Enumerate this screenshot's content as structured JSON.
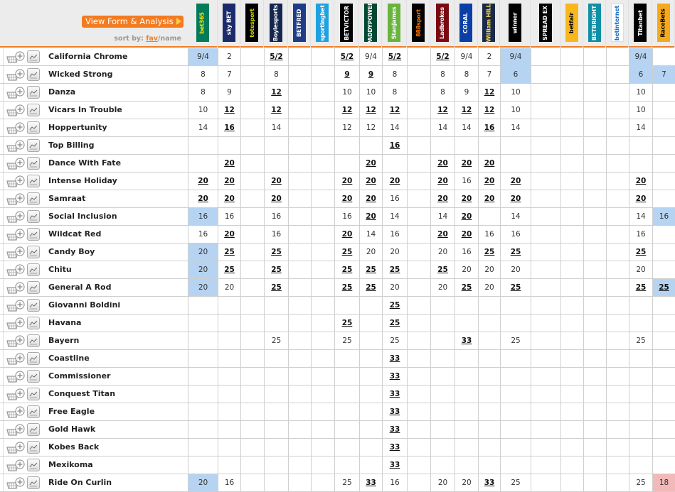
{
  "header": {
    "form_button": "View Form & Analysis",
    "sort_label": "sort by:",
    "sort_fav": "fav",
    "sort_sep": "/",
    "sort_name": "name"
  },
  "colors": {
    "accent": "#f47b20",
    "best_price_bg": "#b6d4f2",
    "drifting_bg": "#f2b9b9"
  },
  "bookmakers": [
    {
      "name": "bet365",
      "bg": "#027b5b",
      "fg": "#ffe500"
    },
    {
      "name": "sky BET",
      "bg": "#1b2a6b",
      "fg": "#ffffff"
    },
    {
      "name": "totesport",
      "bg": "#000000",
      "fg": "#c8d400"
    },
    {
      "name": "Boylesports",
      "bg": "#14264f",
      "fg": "#ffffff"
    },
    {
      "name": "BETFRED",
      "bg": "#1f3c88",
      "fg": "#ffffff"
    },
    {
      "name": "sportingbet",
      "bg": "#1ea1e0",
      "fg": "#ffffff"
    },
    {
      "name": "BETVICTOR",
      "bg": "#000000",
      "fg": "#ffffff"
    },
    {
      "name": "PADDYPOWER",
      "bg": "#004833",
      "fg": "#ffffff"
    },
    {
      "name": "StanJames",
      "bg": "#6ab43e",
      "fg": "#ffffff"
    },
    {
      "name": "888sport",
      "bg": "#000000",
      "fg": "#ff7a00"
    },
    {
      "name": "Ladbrokes",
      "bg": "#7a0a12",
      "fg": "#ffffff"
    },
    {
      "name": "CORAL",
      "bg": "#0b3fa6",
      "fg": "#ffffff"
    },
    {
      "name": "William HILL",
      "bg": "#1c2a4a",
      "fg": "#f7d84a"
    },
    {
      "name": "winner",
      "bg": "#000000",
      "fg": "#ffffff"
    },
    {
      "name": "SPREAD EX",
      "bg": "#000000",
      "fg": "#ffffff"
    },
    {
      "name": "betfair",
      "bg": "#f8b71c",
      "fg": "#000000"
    },
    {
      "name": "BETBRIGHT",
      "bg": "#0f8fa5",
      "fg": "#ffffff"
    },
    {
      "name": "betinternet",
      "bg": "#ffffff",
      "fg": "#1f6fc4"
    },
    {
      "name": "Titanbet",
      "bg": "#000000",
      "fg": "#ffffff"
    },
    {
      "name": "RaceBets",
      "bg": "#f5a91c",
      "fg": "#000000"
    }
  ],
  "runners": [
    {
      "name": "California Chrome",
      "odds": [
        "9/4",
        "2",
        "",
        "5/2",
        "",
        "",
        "5/2",
        "9/4",
        "5/2",
        "",
        "5/2",
        "9/4",
        "2",
        "9/4",
        "",
        "",
        "",
        "",
        "9/4",
        ""
      ],
      "best": [
        3,
        6,
        8,
        10
      ],
      "blue": [
        0,
        13,
        18
      ],
      "pink": []
    },
    {
      "name": "Wicked Strong",
      "odds": [
        "8",
        "7",
        "",
        "8",
        "",
        "",
        "9",
        "9",
        "8",
        "",
        "8",
        "8",
        "7",
        "6",
        "",
        "",
        "",
        "",
        "6",
        "7"
      ],
      "best": [
        6,
        7
      ],
      "blue": [
        13,
        18,
        19
      ],
      "pink": []
    },
    {
      "name": "Danza",
      "odds": [
        "8",
        "9",
        "",
        "12",
        "",
        "",
        "10",
        "10",
        "8",
        "",
        "8",
        "9",
        "12",
        "10",
        "",
        "",
        "",
        "",
        "10",
        ""
      ],
      "best": [
        3,
        12
      ],
      "blue": [],
      "pink": []
    },
    {
      "name": "Vicars In Trouble",
      "odds": [
        "10",
        "12",
        "",
        "12",
        "",
        "",
        "12",
        "12",
        "12",
        "",
        "12",
        "12",
        "12",
        "10",
        "",
        "",
        "",
        "",
        "10",
        ""
      ],
      "best": [
        1,
        3,
        6,
        7,
        8,
        10,
        11,
        12
      ],
      "blue": [],
      "pink": []
    },
    {
      "name": "Hoppertunity",
      "odds": [
        "14",
        "16",
        "",
        "14",
        "",
        "",
        "12",
        "12",
        "14",
        "",
        "14",
        "14",
        "16",
        "14",
        "",
        "",
        "",
        "",
        "14",
        ""
      ],
      "best": [
        1,
        12
      ],
      "blue": [],
      "pink": []
    },
    {
      "name": "Top Billing",
      "odds": [
        "",
        "",
        "",
        "",
        "",
        "",
        "",
        "",
        "16",
        "",
        "",
        "",
        "",
        "",
        "",
        "",
        "",
        "",
        "",
        ""
      ],
      "best": [
        8
      ],
      "blue": [],
      "pink": []
    },
    {
      "name": "Dance With Fate",
      "odds": [
        "",
        "20",
        "",
        "",
        "",
        "",
        "",
        "20",
        "",
        "",
        "20",
        "20",
        "20",
        "",
        "",
        "",
        "",
        "",
        "",
        ""
      ],
      "best": [
        1,
        7,
        10,
        11,
        12
      ],
      "blue": [],
      "pink": []
    },
    {
      "name": "Intense Holiday",
      "odds": [
        "20",
        "20",
        "",
        "20",
        "",
        "",
        "20",
        "20",
        "20",
        "",
        "20",
        "16",
        "20",
        "20",
        "",
        "",
        "",
        "",
        "20",
        ""
      ],
      "best": [
        0,
        1,
        3,
        6,
        7,
        8,
        10,
        12,
        13,
        18
      ],
      "blue": [],
      "pink": []
    },
    {
      "name": "Samraat",
      "odds": [
        "20",
        "20",
        "",
        "20",
        "",
        "",
        "20",
        "20",
        "16",
        "",
        "20",
        "20",
        "20",
        "20",
        "",
        "",
        "",
        "",
        "20",
        ""
      ],
      "best": [
        0,
        1,
        3,
        6,
        7,
        10,
        11,
        12,
        13,
        18
      ],
      "blue": [],
      "pink": []
    },
    {
      "name": "Social Inclusion",
      "odds": [
        "16",
        "16",
        "",
        "16",
        "",
        "",
        "16",
        "20",
        "14",
        "",
        "14",
        "20",
        "",
        "14",
        "",
        "",
        "",
        "",
        "14",
        "16"
      ],
      "best": [
        7,
        11
      ],
      "blue": [
        0,
        19
      ],
      "pink": []
    },
    {
      "name": "Wildcat Red",
      "odds": [
        "16",
        "20",
        "",
        "16",
        "",
        "",
        "20",
        "14",
        "16",
        "",
        "20",
        "20",
        "16",
        "16",
        "",
        "",
        "",
        "",
        "16",
        ""
      ],
      "best": [
        1,
        6,
        10,
        11
      ],
      "blue": [],
      "pink": []
    },
    {
      "name": "Candy Boy",
      "odds": [
        "20",
        "25",
        "",
        "25",
        "",
        "",
        "25",
        "20",
        "20",
        "",
        "20",
        "16",
        "25",
        "25",
        "",
        "",
        "",
        "",
        "25",
        ""
      ],
      "best": [
        1,
        3,
        6,
        12,
        13,
        18
      ],
      "blue": [
        0
      ],
      "pink": []
    },
    {
      "name": "Chitu",
      "odds": [
        "20",
        "25",
        "",
        "25",
        "",
        "",
        "25",
        "25",
        "25",
        "",
        "25",
        "20",
        "20",
        "20",
        "",
        "",
        "",
        "",
        "20",
        ""
      ],
      "best": [
        1,
        3,
        6,
        7,
        8,
        10
      ],
      "blue": [
        0
      ],
      "pink": []
    },
    {
      "name": "General A Rod",
      "odds": [
        "20",
        "20",
        "",
        "25",
        "",
        "",
        "25",
        "25",
        "20",
        "",
        "20",
        "25",
        "20",
        "25",
        "",
        "",
        "",
        "",
        "25",
        "25"
      ],
      "best": [
        3,
        6,
        7,
        11,
        13,
        18,
        19
      ],
      "blue": [
        0,
        19
      ],
      "pink": []
    },
    {
      "name": "Giovanni Boldini",
      "odds": [
        "",
        "",
        "",
        "",
        "",
        "",
        "",
        "",
        "25",
        "",
        "",
        "",
        "",
        "",
        "",
        "",
        "",
        "",
        "",
        ""
      ],
      "best": [
        8
      ],
      "blue": [],
      "pink": []
    },
    {
      "name": "Havana",
      "odds": [
        "",
        "",
        "",
        "",
        "",
        "",
        "25",
        "",
        "25",
        "",
        "",
        "",
        "",
        "",
        "",
        "",
        "",
        "",
        "",
        ""
      ],
      "best": [
        6,
        8
      ],
      "blue": [],
      "pink": []
    },
    {
      "name": "Bayern",
      "odds": [
        "",
        "",
        "",
        "25",
        "",
        "",
        "25",
        "",
        "25",
        "",
        "",
        "33",
        "",
        "25",
        "",
        "",
        "",
        "",
        "25",
        ""
      ],
      "best": [
        11
      ],
      "blue": [],
      "pink": []
    },
    {
      "name": "Coastline",
      "odds": [
        "",
        "",
        "",
        "",
        "",
        "",
        "",
        "",
        "33",
        "",
        "",
        "",
        "",
        "",
        "",
        "",
        "",
        "",
        "",
        ""
      ],
      "best": [
        8
      ],
      "blue": [],
      "pink": []
    },
    {
      "name": "Commissioner",
      "odds": [
        "",
        "",
        "",
        "",
        "",
        "",
        "",
        "",
        "33",
        "",
        "",
        "",
        "",
        "",
        "",
        "",
        "",
        "",
        "",
        ""
      ],
      "best": [
        8
      ],
      "blue": [],
      "pink": []
    },
    {
      "name": "Conquest Titan",
      "odds": [
        "",
        "",
        "",
        "",
        "",
        "",
        "",
        "",
        "33",
        "",
        "",
        "",
        "",
        "",
        "",
        "",
        "",
        "",
        "",
        ""
      ],
      "best": [
        8
      ],
      "blue": [],
      "pink": []
    },
    {
      "name": "Free Eagle",
      "odds": [
        "",
        "",
        "",
        "",
        "",
        "",
        "",
        "",
        "33",
        "",
        "",
        "",
        "",
        "",
        "",
        "",
        "",
        "",
        "",
        ""
      ],
      "best": [
        8
      ],
      "blue": [],
      "pink": []
    },
    {
      "name": "Gold Hawk",
      "odds": [
        "",
        "",
        "",
        "",
        "",
        "",
        "",
        "",
        "33",
        "",
        "",
        "",
        "",
        "",
        "",
        "",
        "",
        "",
        "",
        ""
      ],
      "best": [
        8
      ],
      "blue": [],
      "pink": []
    },
    {
      "name": "Kobes Back",
      "odds": [
        "",
        "",
        "",
        "",
        "",
        "",
        "",
        "",
        "33",
        "",
        "",
        "",
        "",
        "",
        "",
        "",
        "",
        "",
        "",
        ""
      ],
      "best": [
        8
      ],
      "blue": [],
      "pink": []
    },
    {
      "name": "Mexikoma",
      "odds": [
        "",
        "",
        "",
        "",
        "",
        "",
        "",
        "",
        "33",
        "",
        "",
        "",
        "",
        "",
        "",
        "",
        "",
        "",
        "",
        ""
      ],
      "best": [
        8
      ],
      "blue": [],
      "pink": []
    },
    {
      "name": "Ride On Curlin",
      "odds": [
        "20",
        "16",
        "",
        "",
        "",
        "",
        "25",
        "33",
        "16",
        "",
        "20",
        "20",
        "33",
        "25",
        "",
        "",
        "",
        "",
        "25",
        "18"
      ],
      "best": [
        7,
        12
      ],
      "blue": [
        0
      ],
      "pink": [
        19
      ]
    }
  ]
}
